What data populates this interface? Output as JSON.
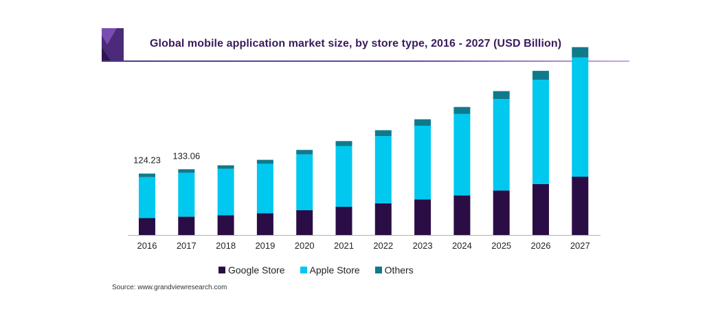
{
  "title": "Global mobile application market size, by store type, 2016 - 2027 (USD Billion)",
  "source": "Source: www.grandviewresearch.com",
  "colors": {
    "google": "#2b0d46",
    "apple": "#00c8ef",
    "others": "#0f7a8c",
    "title": "#3a1a5c"
  },
  "chart_data": {
    "type": "bar",
    "stacked": true,
    "categories": [
      "2016",
      "2017",
      "2018",
      "2019",
      "2020",
      "2021",
      "2022",
      "2023",
      "2024",
      "2025",
      "2026",
      "2027"
    ],
    "series": [
      {
        "name": "Google Store",
        "values": [
          34,
          37,
          40,
          44,
          50,
          57,
          64,
          72,
          80,
          90,
          103,
          118
        ]
      },
      {
        "name": "Apple Store",
        "values": [
          83,
          89,
          94,
          100,
          113,
          123,
          136,
          149,
          165,
          185,
          211,
          241
        ]
      },
      {
        "name": "Others",
        "values": [
          7.23,
          7.06,
          7,
          8,
          9,
          10,
          12,
          13,
          14,
          16,
          18,
          21
        ]
      }
    ],
    "data_labels": [
      {
        "index": 0,
        "text": "124.23"
      },
      {
        "index": 1,
        "text": "133.06"
      }
    ],
    "ylim": [
      0,
      385
    ],
    "grid": false,
    "legend_position": "bottom",
    "title": "Global mobile application market size, by store type, 2016 - 2027 (USD Billion)",
    "xlabel": "",
    "ylabel": ""
  }
}
